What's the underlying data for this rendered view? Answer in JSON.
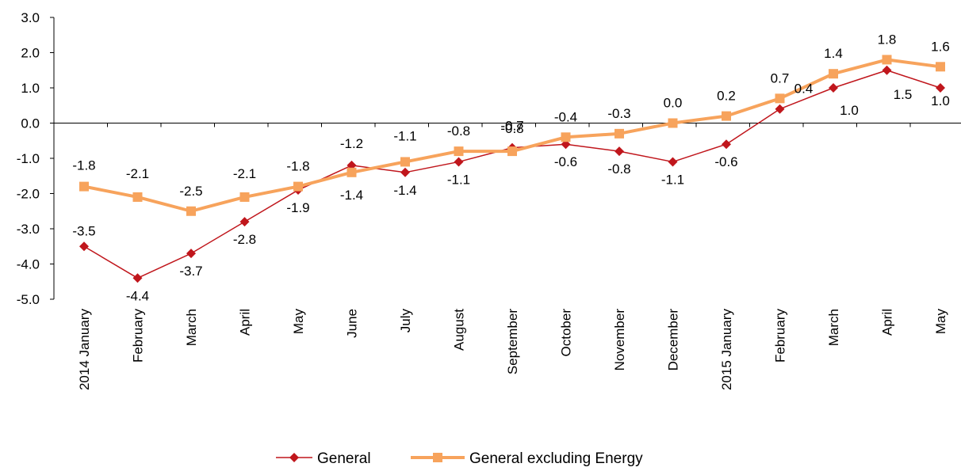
{
  "chart_data": {
    "type": "line",
    "title": "",
    "xlabel": "",
    "ylabel": "",
    "categories": [
      "2014 January",
      "February",
      "March",
      "April",
      "May",
      "June",
      "July",
      "August",
      "September",
      "October",
      "November",
      "December",
      "2015 January",
      "February",
      "March",
      "April",
      "May"
    ],
    "ylim": [
      -5.0,
      3.0
    ],
    "yticks": [
      3.0,
      2.0,
      1.0,
      0.0,
      -1.0,
      -2.0,
      -3.0,
      -4.0,
      -5.0
    ],
    "grid": false,
    "legend_position": "bottom",
    "series": [
      {
        "name": "General",
        "color": "#C0161C",
        "marker": "diamond",
        "values": [
          -3.5,
          -4.4,
          -3.7,
          -2.8,
          -1.9,
          -1.2,
          -1.4,
          -1.1,
          -0.7,
          -0.6,
          -0.8,
          -1.1,
          -0.6,
          0.4,
          1.0,
          1.5,
          1.0
        ]
      },
      {
        "name": "General excluding Energy",
        "color": "#F7A35C",
        "marker": "square",
        "values": [
          -1.8,
          -2.1,
          -2.5,
          -2.1,
          -1.8,
          -1.4,
          -1.1,
          -0.8,
          -0.8,
          -0.4,
          -0.3,
          0.0,
          0.2,
          0.7,
          1.4,
          1.8,
          1.6
        ]
      }
    ]
  }
}
